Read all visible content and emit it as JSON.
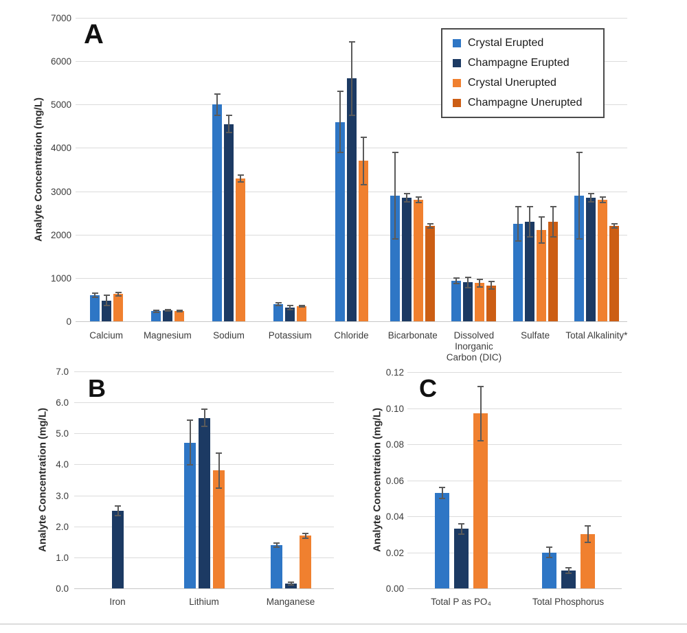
{
  "colors": {
    "crystal_erupted": "#2E76C5",
    "champagne_erupted": "#1C3A63",
    "crystal_unerupted": "#F0802F",
    "champagne_unerupted": "#CC5E14",
    "error_bar": "#5A5A5A",
    "gridline": "#DBDBDB",
    "axis_line": "#C6C6C6",
    "legend_border": "#4A4A4A",
    "text": "#3B3B3B"
  },
  "legend": {
    "items": [
      {
        "label": "Crystal Erupted",
        "color_key": "crystal_erupted"
      },
      {
        "label": "Champagne Erupted",
        "color_key": "champagne_erupted"
      },
      {
        "label": "Crystal Unerupted",
        "color_key": "crystal_unerupted"
      },
      {
        "label": "Champagne Unerupted",
        "color_key": "champagne_unerupted"
      }
    ]
  },
  "chart_data": [
    {
      "type": "bar",
      "panel_label": "A",
      "ylabel": "Analyte Concentration (mg/L)",
      "xlabel": "",
      "ylim": [
        0,
        7000
      ],
      "grid": true,
      "legend_position": "top-right",
      "yticks": [
        {
          "value": 0,
          "label": "0"
        },
        {
          "value": 1000,
          "label": "1000"
        },
        {
          "value": 2000,
          "label": "2000"
        },
        {
          "value": 3000,
          "label": "3000"
        },
        {
          "value": 4000,
          "label": "4000"
        },
        {
          "value": 5000,
          "label": "5000"
        },
        {
          "value": 6000,
          "label": "6000"
        },
        {
          "value": 7000,
          "label": "7000"
        }
      ],
      "categories": [
        "Calcium",
        "Magnesium",
        "Sodium",
        "Potassium",
        "Chloride",
        "Bicarbonate",
        "Dissolved Inorganic Carbon (DIC)",
        "Sulfate",
        "Total Alkalinity*"
      ],
      "series": [
        {
          "name": "Crystal Erupted",
          "color_key": "crystal_erupted",
          "values": [
            600,
            230,
            5000,
            400,
            4600,
            2900,
            930,
            2250,
            2900
          ],
          "errors": [
            50,
            25,
            250,
            35,
            700,
            1000,
            60,
            400,
            1000
          ]
        },
        {
          "name": "Champagne Erupted",
          "color_key": "champagne_erupted",
          "values": [
            480,
            250,
            4550,
            320,
            5600,
            2850,
            900,
            2300,
            2850
          ],
          "errors": [
            120,
            20,
            200,
            45,
            850,
            100,
            120,
            350,
            100
          ]
        },
        {
          "name": "Crystal Unerupted",
          "color_key": "crystal_unerupted",
          "values": [
            630,
            240,
            3300,
            350,
            3700,
            2800,
            880,
            2100,
            2800
          ],
          "errors": [
            40,
            20,
            80,
            20,
            550,
            60,
            90,
            300,
            60
          ]
        },
        {
          "name": "Champagne Unerupted",
          "color_key": "champagne_unerupted",
          "values": [
            null,
            null,
            null,
            null,
            null,
            2200,
            830,
            2300,
            2200
          ],
          "errors": [
            null,
            null,
            null,
            null,
            null,
            50,
            90,
            350,
            50
          ]
        }
      ]
    },
    {
      "type": "bar",
      "panel_label": "B",
      "ylabel": "Analyte Concentration (mg/L)",
      "xlabel": "",
      "ylim": [
        0,
        7
      ],
      "grid": true,
      "yticks": [
        {
          "value": 0,
          "label": "0.0"
        },
        {
          "value": 1,
          "label": "1.0"
        },
        {
          "value": 2,
          "label": "2.0"
        },
        {
          "value": 3,
          "label": "3.0"
        },
        {
          "value": 4,
          "label": "4.0"
        },
        {
          "value": 5,
          "label": "5.0"
        },
        {
          "value": 6,
          "label": "6.0"
        },
        {
          "value": 7,
          "label": "7.0"
        }
      ],
      "categories": [
        "Iron",
        "Lithium",
        "Manganese"
      ],
      "series": [
        {
          "name": "Crystal Erupted",
          "color_key": "crystal_erupted",
          "values": [
            null,
            4.7,
            1.4
          ],
          "errors": [
            null,
            0.72,
            0.07
          ]
        },
        {
          "name": "Champagne Erupted",
          "color_key": "champagne_erupted",
          "values": [
            2.5,
            5.5,
            0.15
          ],
          "errors": [
            0.15,
            0.28,
            0.05
          ]
        },
        {
          "name": "Crystal Unerupted",
          "color_key": "crystal_unerupted",
          "values": [
            null,
            3.8,
            1.7
          ],
          "errors": [
            null,
            0.57,
            0.08
          ]
        },
        {
          "name": "Champagne Unerupted",
          "color_key": "champagne_unerupted",
          "values": [
            null,
            null,
            null
          ],
          "errors": [
            null,
            null,
            null
          ]
        }
      ]
    },
    {
      "type": "bar",
      "panel_label": "C",
      "ylabel": "Analyte Concentration (mg/L)",
      "xlabel": "",
      "ylim": [
        0,
        0.12
      ],
      "grid": true,
      "yticks": [
        {
          "value": 0,
          "label": "0.00"
        },
        {
          "value": 0.02,
          "label": "0.02"
        },
        {
          "value": 0.04,
          "label": "0.04"
        },
        {
          "value": 0.06,
          "label": "0.06"
        },
        {
          "value": 0.08,
          "label": "0.08"
        },
        {
          "value": 0.1,
          "label": "0.10"
        },
        {
          "value": 0.12,
          "label": "0.12"
        }
      ],
      "categories": [
        "Total P as PO₄",
        "Total Phosphorus"
      ],
      "series": [
        {
          "name": "Crystal Erupted",
          "color_key": "crystal_erupted",
          "values": [
            0.053,
            0.02
          ],
          "errors": [
            0.003,
            0.003
          ]
        },
        {
          "name": "Champagne Erupted",
          "color_key": "champagne_erupted",
          "values": [
            0.033,
            0.01
          ],
          "errors": [
            0.003,
            0.0015
          ]
        },
        {
          "name": "Crystal Unerupted",
          "color_key": "crystal_unerupted",
          "values": [
            0.097,
            0.03
          ],
          "errors": [
            0.015,
            0.0045
          ]
        },
        {
          "name": "Champagne Unerupted",
          "color_key": "champagne_unerupted",
          "values": [
            null,
            null
          ],
          "errors": [
            null,
            null
          ]
        }
      ]
    }
  ]
}
